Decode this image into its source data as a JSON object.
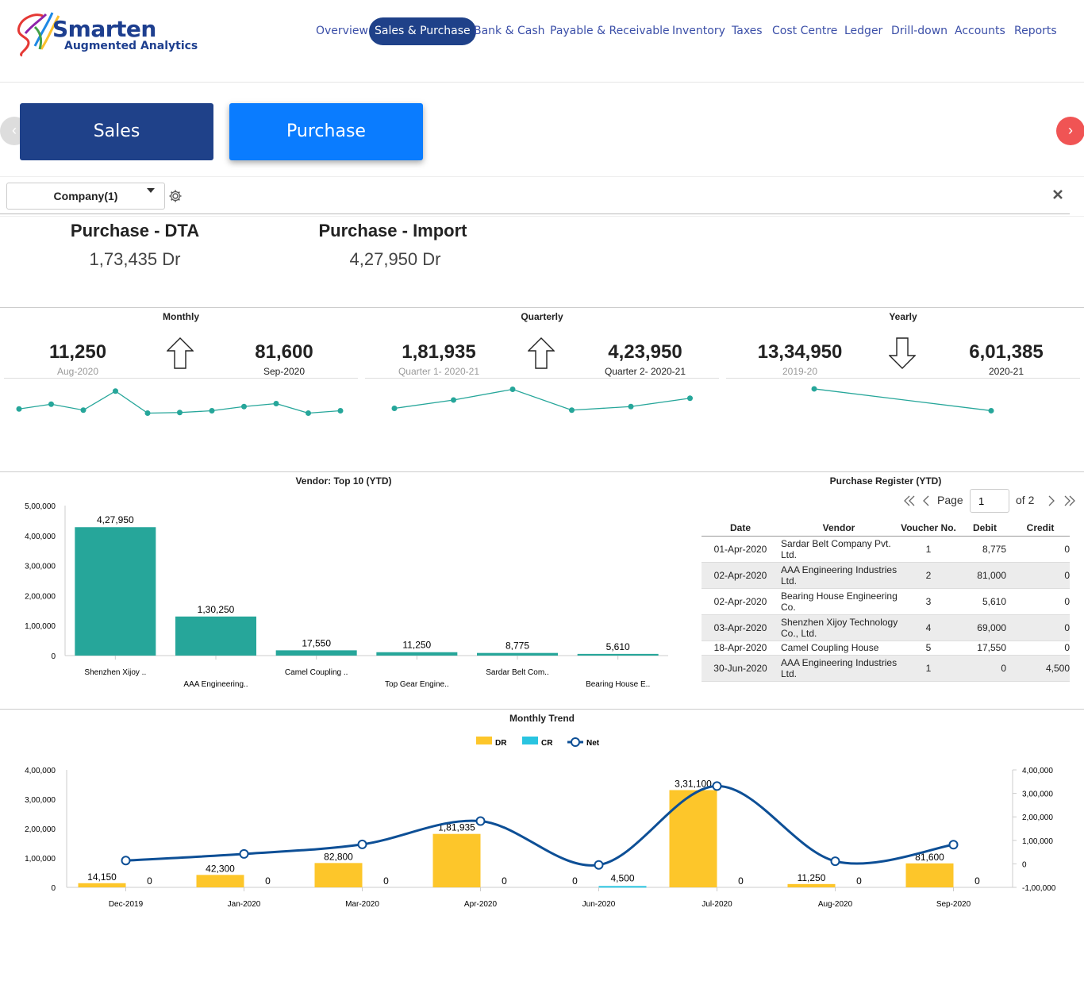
{
  "header": {
    "logo_title": "Smarten",
    "logo_subtitle": "Augmented Analytics",
    "nav": [
      {
        "label": "Overview"
      },
      {
        "label": "Sales & Purchase",
        "active": true
      },
      {
        "label": "Bank & Cash"
      },
      {
        "label": "Payable & Receivable"
      },
      {
        "label": "Inventory"
      },
      {
        "label": "Taxes"
      },
      {
        "label": "Cost Centre"
      },
      {
        "label": "Ledger"
      },
      {
        "label": "Drill-down"
      },
      {
        "label": "Accounts"
      },
      {
        "label": "Reports"
      }
    ]
  },
  "tabs": {
    "sales_label": "Sales",
    "purchase_label": "Purchase",
    "prev_glyph": "‹",
    "next_glyph": "›"
  },
  "filter": {
    "company_label": "Company(1)"
  },
  "kpis": [
    {
      "title": "Purchase - DTA",
      "value": "1,73,435 Dr"
    },
    {
      "title": "Purchase - Import",
      "value": "4,27,950 Dr"
    }
  ],
  "comparisons": {
    "monthly": {
      "title": "Monthly",
      "prev_value": "11,250",
      "prev_label": "Aug-2020",
      "curr_value": "81,600",
      "curr_label": "Sep-2020",
      "direction": "up"
    },
    "quarterly": {
      "title": "Quarterly",
      "prev_value": "1,81,935",
      "prev_label": "Quarter 1- 2020-21",
      "curr_value": "4,23,950",
      "curr_label": "Quarter 2- 2020-21",
      "direction": "up"
    },
    "yearly": {
      "title": "Yearly",
      "prev_value": "13,34,950",
      "prev_label": "2019-20",
      "curr_value": "6,01,385",
      "curr_label": "2020-21",
      "direction": "down"
    }
  },
  "vendor_chart_title": "Vendor: Top 10 (YTD)",
  "register": {
    "title": "Purchase Register (YTD)",
    "page_label": "Page",
    "page_value": "1",
    "of_label": "of 2",
    "columns": [
      "Date",
      "Vendor",
      "Voucher No.",
      "Debit",
      "Credit"
    ],
    "rows": [
      {
        "date": "01-Apr-2020",
        "vendor": "Sardar Belt Company Pvt. Ltd.",
        "voucher": "1",
        "debit": "8,775",
        "credit": "0"
      },
      {
        "date": "02-Apr-2020",
        "vendor": "AAA Engineering Industries Ltd.",
        "voucher": "2",
        "debit": "81,000",
        "credit": "0"
      },
      {
        "date": "02-Apr-2020",
        "vendor": "Bearing House Engineering Co.",
        "voucher": "3",
        "debit": "5,610",
        "credit": "0"
      },
      {
        "date": "03-Apr-2020",
        "vendor": "Shenzhen Xijoy Technology Co., Ltd.",
        "voucher": "4",
        "debit": "69,000",
        "credit": "0"
      },
      {
        "date": "18-Apr-2020",
        "vendor": "Camel Coupling House",
        "voucher": "5",
        "debit": "17,550",
        "credit": "0"
      },
      {
        "date": "30-Jun-2020",
        "vendor": "AAA Engineering Industries Ltd.",
        "voucher": "1",
        "debit": "0",
        "credit": "4,500"
      }
    ]
  },
  "trend_title": "Monthly Trend",
  "colors": {
    "navy": "#1f4189",
    "blue": "#0a7cff",
    "teal": "#26a69a",
    "yellow": "#fdc62a",
    "cyan": "#29c4e0",
    "net_line": "#0d4f96",
    "red": "#f05454"
  },
  "chart_data": [
    {
      "type": "line",
      "title": "Monthly",
      "values": [
        16.5,
        20.5,
        15.5,
        31.5,
        13,
        13.5,
        15,
        18.5,
        21,
        13,
        15
      ],
      "ylim": [
        0,
        40
      ]
    },
    {
      "type": "line",
      "title": "Quarterly",
      "values": [
        17,
        24,
        33,
        15.5,
        18.5,
        25.5
      ],
      "ylim": [
        0,
        40
      ]
    },
    {
      "type": "line",
      "title": "Yearly",
      "values": [
        13.3495,
        6.01385
      ],
      "ylim": [
        0,
        16
      ]
    },
    {
      "type": "bar",
      "title": "Vendor: Top 10 (YTD)",
      "categories": [
        "Shenzhen Xijoy ..",
        "AAA Engineering..",
        "Camel Coupling ..",
        "Top Gear Engine..",
        "Sardar Belt Com..",
        "Bearing House E.."
      ],
      "values": [
        427950,
        130250,
        17550,
        11250,
        8775,
        5610
      ],
      "labels": [
        "4,27,950",
        "1,30,250",
        "17,550",
        "11,250",
        "8,775",
        "5,610"
      ],
      "yticks": [
        "0",
        "1,00,000",
        "2,00,000",
        "3,00,000",
        "4,00,000",
        "5,00,000"
      ],
      "ylim": [
        0,
        500000
      ]
    },
    {
      "type": "bar",
      "title": "Monthly Trend",
      "legend": [
        "DR",
        "CR",
        "Net"
      ],
      "categories": [
        "Dec-2019",
        "Jan-2020",
        "Mar-2020",
        "Apr-2020",
        "Jun-2020",
        "Jul-2020",
        "Aug-2020",
        "Sep-2020"
      ],
      "series": [
        {
          "name": "DR",
          "values": [
            14150,
            42300,
            82800,
            181935,
            0,
            331100,
            11250,
            81600
          ],
          "labels": [
            "14,150",
            "42,300",
            "82,800",
            "1,81,935",
            "0",
            "3,31,100",
            "11,250",
            "81,600"
          ]
        },
        {
          "name": "CR",
          "values": [
            0,
            0,
            0,
            0,
            4500,
            0,
            0,
            0
          ],
          "labels": [
            "0",
            "0",
            "0",
            "0",
            "4,500",
            "0",
            "0",
            "0"
          ]
        },
        {
          "name": "Net",
          "values": [
            14150,
            42300,
            82800,
            181935,
            -4500,
            331100,
            11250,
            81600
          ]
        }
      ],
      "yticks_left": [
        "0",
        "1,00,000",
        "2,00,000",
        "3,00,000",
        "4,00,000"
      ],
      "yticks_right": [
        "-1,00,000",
        "0",
        "1,00,000",
        "2,00,000",
        "3,00,000",
        "4,00,000"
      ],
      "ylim": [
        0,
        400000
      ],
      "ylim_right": [
        -100000,
        400000
      ]
    }
  ]
}
